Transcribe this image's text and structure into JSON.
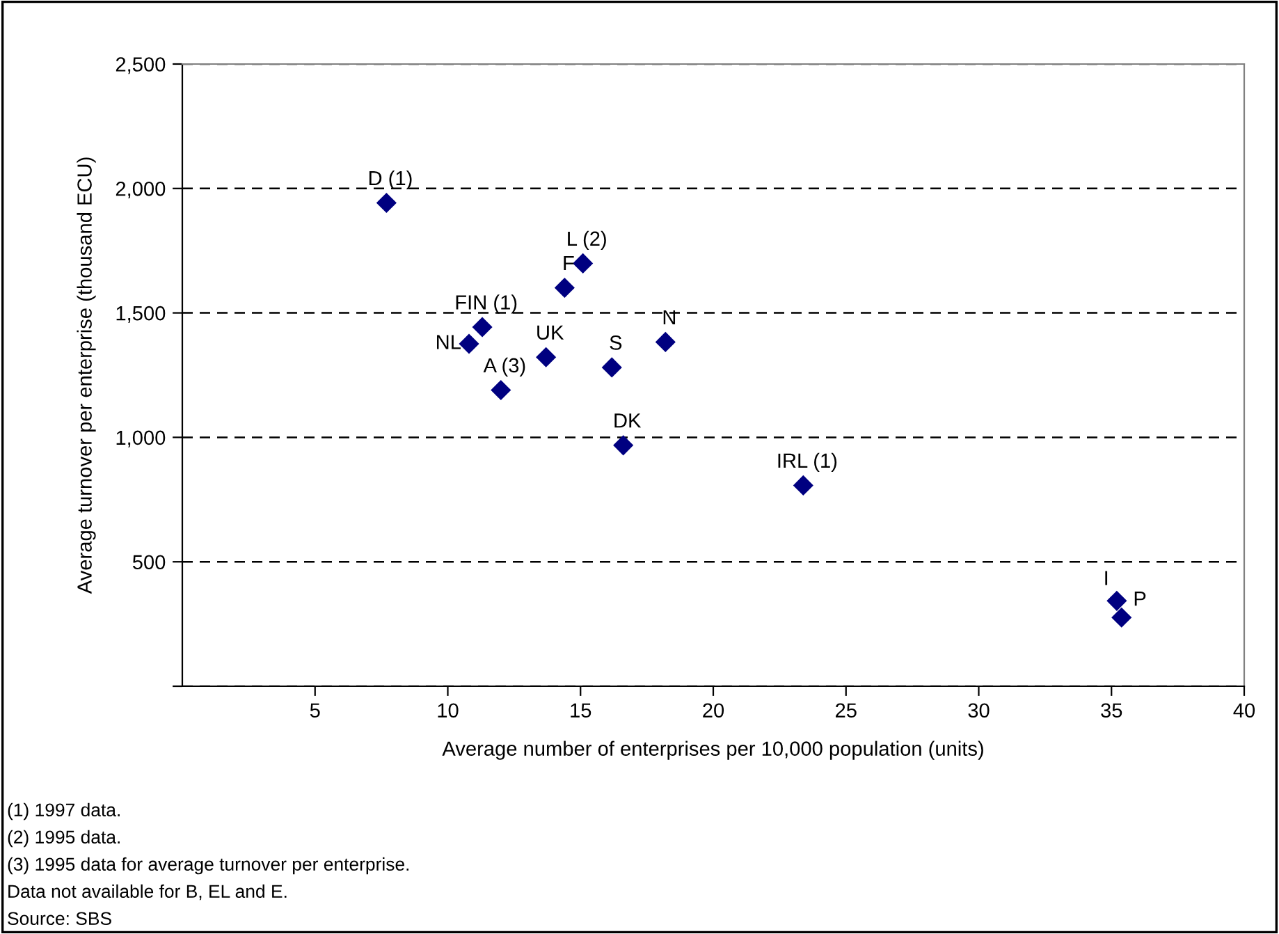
{
  "chart_data": {
    "type": "scatter",
    "xlabel": "Average number of enterprises per 10,000 population (units)",
    "ylabel": "Average turnover per enterprise (thousand ECU)",
    "series": [
      {
        "color": "#000080",
        "x": [
          7.69,
          15.09,
          14.4,
          11.3,
          10.8,
          13.7,
          12.0,
          16.18,
          18.2,
          16.61,
          23.39,
          35.2,
          35.38
        ],
        "values": [
          1942,
          1699,
          1601,
          1443,
          1376,
          1322,
          1190,
          1281,
          1383,
          968,
          807,
          343,
          276
        ]
      }
    ],
    "xlim": [
      0,
      40
    ],
    "xticks": [
      5,
      10,
      15,
      20,
      25,
      30,
      35,
      40
    ],
    "ylim": [
      0,
      2500
    ],
    "yticks": [
      {
        "value": 0,
        "label": null
      },
      {
        "value": 500,
        "label": "500"
      },
      {
        "value": 1000,
        "label": "1,000"
      },
      {
        "value": 1500,
        "label": "1,500"
      },
      {
        "value": 2000,
        "label": "2,000"
      },
      {
        "value": 2500,
        "label": "2,500"
      }
    ],
    "grid": "y",
    "marker": "diamond",
    "annotations": [
      {
        "text": "D (1)",
        "x": 7.69,
        "y": 1942
      },
      {
        "text": "L (2)",
        "x": 15.09,
        "y": 1699
      },
      {
        "text": "F",
        "x": 14.4,
        "y": 1601
      },
      {
        "text": "FIN (1)",
        "x": 11.3,
        "y": 1443
      },
      {
        "text": "NL",
        "x": 10.8,
        "y": 1376
      },
      {
        "text": "UK",
        "x": 13.7,
        "y": 1322
      },
      {
        "text": "A (3)",
        "x": 12.0,
        "y": 1190
      },
      {
        "text": "S",
        "x": 16.18,
        "y": 1281
      },
      {
        "text": "N",
        "x": 18.2,
        "y": 1383
      },
      {
        "text": "DK",
        "x": 16.61,
        "y": 968
      },
      {
        "text": "IRL (1)",
        "x": 23.39,
        "y": 807
      },
      {
        "text": "I",
        "x": 35.2,
        "y": 343
      },
      {
        "text": "P",
        "x": 35.38,
        "y": 276
      },
      "(1) 1997 data.",
      "(2) 1995 data.",
      "(3) 1995 data for average turnover per enterprise.",
      "Data not available for B, EL and E.",
      "Source: SBS"
    ]
  }
}
